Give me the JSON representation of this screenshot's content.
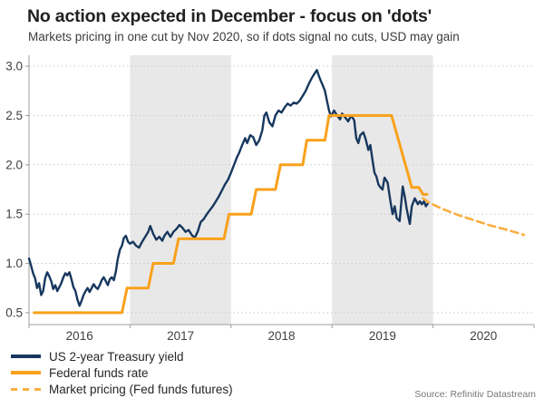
{
  "header": {
    "title": "No action expected in December - focus on 'dots'",
    "subtitle": "Markets pricing in one cut by Nov 2020, so if dots signal no cuts, USD may gain"
  },
  "source": "Source: Refinitiv Datastream",
  "colors": {
    "treasury_navy": "#17375E",
    "fed_funds_orange": "#F9A11B",
    "market_pricing_orange": "#FBAE3F",
    "shaded_band": "#E8E8E8",
    "gridline": "#CBCBCB",
    "axis": "#9C9C9C",
    "tick_text": "#404040",
    "title_text": "#212121",
    "source_text": "#787878"
  },
  "chart_data": {
    "type": "line",
    "title": "No action expected in December - focus on 'dots'",
    "subtitle": "Markets pricing in one cut by Nov 2020, so if dots signal no cuts, USD may gain",
    "source": "Source: Refinitiv Datastream",
    "grid": "horizontal-dotted",
    "legend_position": "bottom-left",
    "x_range": [
      2016,
      2021
    ],
    "y_range": [
      0.38,
      3.11
    ],
    "y_ticks": [
      0.5,
      1.0,
      1.5,
      2.0,
      2.5,
      3.0
    ],
    "y_tick_labels": [
      "0.5",
      "1.0",
      "1.5",
      "2.0",
      "2.5",
      "3.0"
    ],
    "x_boundary_ticks": [
      2016,
      2017,
      2018,
      2019,
      2020,
      2021
    ],
    "x_tick_years": [
      2016,
      2017,
      2018,
      2019,
      2020
    ],
    "x_tick_labels": [
      "2016",
      "2017",
      "2018",
      "2019",
      "2020"
    ],
    "shaded_year_bands": [
      [
        2017,
        2018
      ],
      [
        2019,
        2020
      ]
    ],
    "series": [
      {
        "name": "US 2-year Treasury yield",
        "data_name": "treasury-yield-line",
        "color": "#17375E",
        "width": 2.4,
        "dash": null,
        "points": [
          [
            2016.0,
            1.05
          ],
          [
            2016.02,
            0.98
          ],
          [
            2016.04,
            0.9
          ],
          [
            2016.06,
            0.85
          ],
          [
            2016.08,
            0.75
          ],
          [
            2016.1,
            0.8
          ],
          [
            2016.12,
            0.68
          ],
          [
            2016.14,
            0.72
          ],
          [
            2016.16,
            0.85
          ],
          [
            2016.18,
            0.91
          ],
          [
            2016.2,
            0.87
          ],
          [
            2016.22,
            0.82
          ],
          [
            2016.24,
            0.74
          ],
          [
            2016.26,
            0.78
          ],
          [
            2016.28,
            0.72
          ],
          [
            2016.3,
            0.76
          ],
          [
            2016.32,
            0.8
          ],
          [
            2016.34,
            0.86
          ],
          [
            2016.36,
            0.9
          ],
          [
            2016.38,
            0.88
          ],
          [
            2016.4,
            0.91
          ],
          [
            2016.42,
            0.84
          ],
          [
            2016.44,
            0.76
          ],
          [
            2016.46,
            0.72
          ],
          [
            2016.48,
            0.63
          ],
          [
            2016.5,
            0.57
          ],
          [
            2016.52,
            0.62
          ],
          [
            2016.54,
            0.68
          ],
          [
            2016.56,
            0.72
          ],
          [
            2016.58,
            0.75
          ],
          [
            2016.6,
            0.71
          ],
          [
            2016.62,
            0.75
          ],
          [
            2016.64,
            0.79
          ],
          [
            2016.66,
            0.76
          ],
          [
            2016.68,
            0.74
          ],
          [
            2016.7,
            0.78
          ],
          [
            2016.72,
            0.83
          ],
          [
            2016.74,
            0.86
          ],
          [
            2016.76,
            0.82
          ],
          [
            2016.78,
            0.78
          ],
          [
            2016.8,
            0.84
          ],
          [
            2016.82,
            0.86
          ],
          [
            2016.84,
            0.83
          ],
          [
            2016.86,
            0.92
          ],
          [
            2016.88,
            1.05
          ],
          [
            2016.9,
            1.14
          ],
          [
            2016.92,
            1.18
          ],
          [
            2016.94,
            1.26
          ],
          [
            2016.96,
            1.28
          ],
          [
            2016.98,
            1.22
          ],
          [
            2017.0,
            1.2
          ],
          [
            2017.03,
            1.22
          ],
          [
            2017.06,
            1.18
          ],
          [
            2017.09,
            1.16
          ],
          [
            2017.12,
            1.22
          ],
          [
            2017.15,
            1.27
          ],
          [
            2017.18,
            1.32
          ],
          [
            2017.2,
            1.38
          ],
          [
            2017.23,
            1.3
          ],
          [
            2017.26,
            1.24
          ],
          [
            2017.29,
            1.27
          ],
          [
            2017.32,
            1.23
          ],
          [
            2017.34,
            1.28
          ],
          [
            2017.37,
            1.32
          ],
          [
            2017.4,
            1.27
          ],
          [
            2017.43,
            1.32
          ],
          [
            2017.46,
            1.35
          ],
          [
            2017.49,
            1.39
          ],
          [
            2017.52,
            1.36
          ],
          [
            2017.55,
            1.32
          ],
          [
            2017.58,
            1.34
          ],
          [
            2017.61,
            1.29
          ],
          [
            2017.64,
            1.26
          ],
          [
            2017.67,
            1.32
          ],
          [
            2017.7,
            1.42
          ],
          [
            2017.73,
            1.45
          ],
          [
            2017.76,
            1.5
          ],
          [
            2017.79,
            1.54
          ],
          [
            2017.82,
            1.58
          ],
          [
            2017.85,
            1.63
          ],
          [
            2017.88,
            1.68
          ],
          [
            2017.91,
            1.74
          ],
          [
            2017.94,
            1.8
          ],
          [
            2017.97,
            1.85
          ],
          [
            2018.0,
            1.92
          ],
          [
            2018.03,
            2.0
          ],
          [
            2018.06,
            2.08
          ],
          [
            2018.08,
            2.12
          ],
          [
            2018.11,
            2.2
          ],
          [
            2018.14,
            2.27
          ],
          [
            2018.16,
            2.22
          ],
          [
            2018.19,
            2.3
          ],
          [
            2018.22,
            2.28
          ],
          [
            2018.25,
            2.2
          ],
          [
            2018.28,
            2.25
          ],
          [
            2018.31,
            2.35
          ],
          [
            2018.33,
            2.5
          ],
          [
            2018.35,
            2.53
          ],
          [
            2018.38,
            2.43
          ],
          [
            2018.41,
            2.39
          ],
          [
            2018.44,
            2.5
          ],
          [
            2018.47,
            2.55
          ],
          [
            2018.5,
            2.53
          ],
          [
            2018.53,
            2.58
          ],
          [
            2018.56,
            2.62
          ],
          [
            2018.59,
            2.6
          ],
          [
            2018.62,
            2.63
          ],
          [
            2018.65,
            2.62
          ],
          [
            2018.68,
            2.65
          ],
          [
            2018.71,
            2.7
          ],
          [
            2018.74,
            2.75
          ],
          [
            2018.77,
            2.82
          ],
          [
            2018.8,
            2.88
          ],
          [
            2018.83,
            2.93
          ],
          [
            2018.85,
            2.96
          ],
          [
            2018.87,
            2.9
          ],
          [
            2018.89,
            2.85
          ],
          [
            2018.91,
            2.8
          ],
          [
            2018.93,
            2.75
          ],
          [
            2018.95,
            2.65
          ],
          [
            2018.97,
            2.55
          ],
          [
            2018.99,
            2.49
          ],
          [
            2019.02,
            2.55
          ],
          [
            2019.05,
            2.5
          ],
          [
            2019.08,
            2.46
          ],
          [
            2019.1,
            2.52
          ],
          [
            2019.13,
            2.48
          ],
          [
            2019.16,
            2.44
          ],
          [
            2019.19,
            2.5
          ],
          [
            2019.22,
            2.45
          ],
          [
            2019.24,
            2.27
          ],
          [
            2019.26,
            2.22
          ],
          [
            2019.28,
            2.3
          ],
          [
            2019.31,
            2.33
          ],
          [
            2019.33,
            2.27
          ],
          [
            2019.36,
            2.15
          ],
          [
            2019.38,
            2.2
          ],
          [
            2019.4,
            2.05
          ],
          [
            2019.42,
            1.92
          ],
          [
            2019.44,
            1.88
          ],
          [
            2019.46,
            1.8
          ],
          [
            2019.48,
            1.77
          ],
          [
            2019.5,
            1.75
          ],
          [
            2019.52,
            1.87
          ],
          [
            2019.55,
            1.82
          ],
          [
            2019.58,
            1.62
          ],
          [
            2019.6,
            1.5
          ],
          [
            2019.62,
            1.58
          ],
          [
            2019.64,
            1.46
          ],
          [
            2019.67,
            1.43
          ],
          [
            2019.7,
            1.78
          ],
          [
            2019.72,
            1.68
          ],
          [
            2019.74,
            1.55
          ],
          [
            2019.77,
            1.4
          ],
          [
            2019.79,
            1.58
          ],
          [
            2019.82,
            1.66
          ],
          [
            2019.85,
            1.6
          ],
          [
            2019.87,
            1.63
          ],
          [
            2019.89,
            1.6
          ],
          [
            2019.91,
            1.63
          ],
          [
            2019.93,
            1.58
          ],
          [
            2019.95,
            1.61
          ]
        ]
      },
      {
        "name": "Federal funds rate",
        "data_name": "fed-funds-rate-line",
        "color": "#F9A11B",
        "width": 3,
        "dash": null,
        "points": [
          [
            2016.05,
            0.5
          ],
          [
            2016.92,
            0.5
          ],
          [
            2016.97,
            0.75
          ],
          [
            2017.18,
            0.75
          ],
          [
            2017.23,
            1.0
          ],
          [
            2017.43,
            1.0
          ],
          [
            2017.48,
            1.25
          ],
          [
            2017.93,
            1.25
          ],
          [
            2017.98,
            1.5
          ],
          [
            2018.2,
            1.5
          ],
          [
            2018.25,
            1.75
          ],
          [
            2018.44,
            1.75
          ],
          [
            2018.49,
            2.0
          ],
          [
            2018.71,
            2.0
          ],
          [
            2018.75,
            2.25
          ],
          [
            2018.93,
            2.25
          ],
          [
            2018.97,
            2.5
          ],
          [
            2019.59,
            2.5
          ],
          [
            2019.79,
            1.77
          ],
          [
            2019.86,
            1.77
          ],
          [
            2019.9,
            1.7
          ],
          [
            2019.94,
            1.7
          ]
        ]
      },
      {
        "name": "Market pricing (Fed funds futures)",
        "data_name": "market-pricing-dashed-line",
        "color": "#FBAE3F",
        "width": 2.6,
        "dash": "8 5",
        "points": [
          [
            2019.9,
            1.66
          ],
          [
            2019.97,
            1.61
          ],
          [
            2020.1,
            1.55
          ],
          [
            2020.25,
            1.49
          ],
          [
            2020.4,
            1.44
          ],
          [
            2020.55,
            1.39
          ],
          [
            2020.7,
            1.35
          ],
          [
            2020.9,
            1.29
          ]
        ]
      }
    ]
  }
}
